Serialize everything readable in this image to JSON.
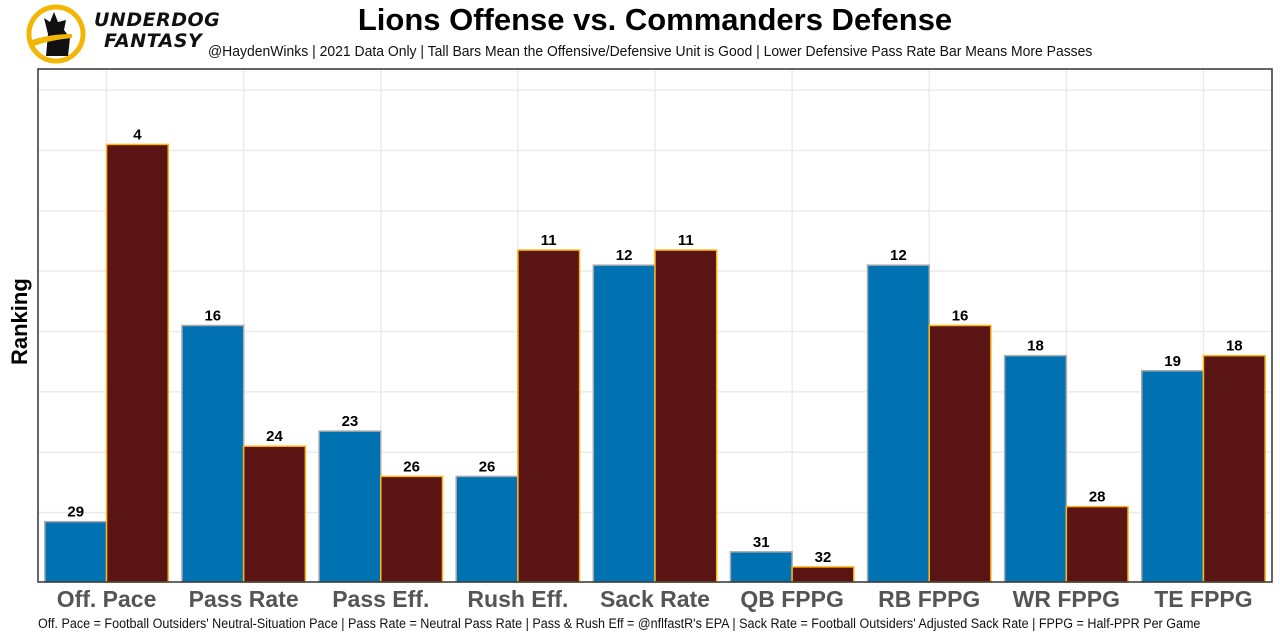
{
  "brand": {
    "line1": "UNDERDOG",
    "line2": "FANTASY",
    "logo_icon": "dog-logo-icon"
  },
  "colors": {
    "offense": "#0072B2",
    "offense_border": "#AAAAAA",
    "defense": "#5A1414",
    "defense_border": "#FFB612",
    "grid": "#EBEBEB",
    "frame": "#333333",
    "category_text": "#555555"
  },
  "chart_data": {
    "type": "bar",
    "title": "Lions Offense vs. Commanders Defense",
    "subtitle": "@HaydenWinks | 2021 Data Only | Tall Bars Mean the Offensive/Defensive Unit is Good | Lower Defensive Pass Rate Bar Means More Passes",
    "xlabel": "",
    "ylabel": "Ranking",
    "caption": "Off. Pace = Football Outsiders' Neutral-Situation Pace | Pass Rate = Neutral Pass Rate | Pass & Rush Eff = @nflfastR's EPA | Sack Rate = Football Outsiders' Adjusted Sack Rate | FPPG = Half-PPR Per Game",
    "categories": [
      "Off. Pace",
      "Pass Rate",
      "Pass Eff.",
      "Rush Eff.",
      "Sack Rate",
      "QB FPPG",
      "RB FPPG",
      "WR FPPG",
      "TE FPPG"
    ],
    "series": [
      {
        "name": "Lions Offense",
        "values": [
          29,
          16,
          23,
          26,
          12,
          31,
          12,
          18,
          19
        ]
      },
      {
        "name": "Commanders Defense",
        "values": [
          4,
          24,
          26,
          11,
          11,
          32,
          16,
          28,
          18
        ]
      }
    ],
    "value_transform": "bar height = 33 - ranking",
    "ylim": [
      0,
      34
    ],
    "y_ticks_shown": false,
    "grid": true,
    "legend": "none"
  }
}
